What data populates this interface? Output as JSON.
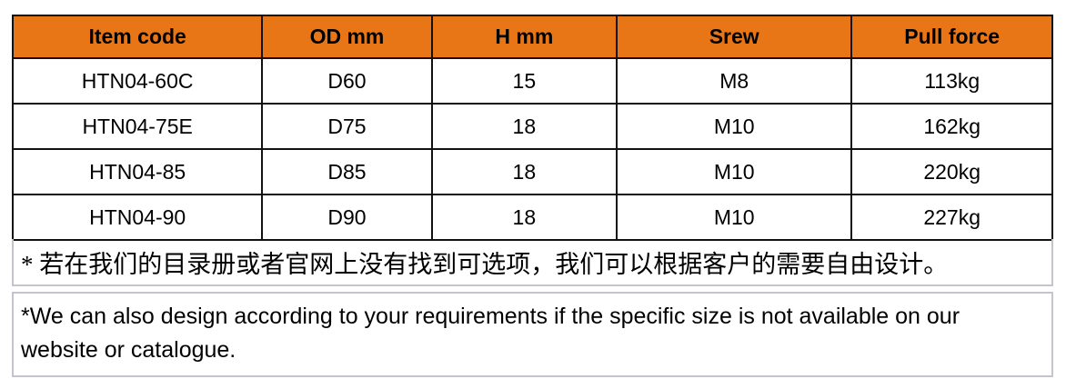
{
  "table": {
    "columns": [
      "Item code",
      "OD mm",
      "H mm",
      "Srew",
      "Pull force"
    ],
    "rows": [
      [
        "HTN04-60C",
        "D60",
        "15",
        "M8",
        "113kg"
      ],
      [
        "HTN04-75E",
        "D75",
        "18",
        "M10",
        "162kg"
      ],
      [
        "HTN04-85",
        "D85",
        "18",
        "M10",
        "220kg"
      ],
      [
        "HTN04-90",
        "D90",
        "18",
        "M10",
        "227kg"
      ]
    ]
  },
  "notes": {
    "chinese": "* 若在我们的目录册或者官网上没有找到可选项，我们可以根据客户的需要自由设计。",
    "english": "*We can also design according to your requirements if the specific size is not available on our website or catalogue."
  },
  "colors": {
    "header_bg": "#e87617",
    "table_border": "#121212",
    "note_border": "#c4c4cc",
    "text": "#000000"
  }
}
